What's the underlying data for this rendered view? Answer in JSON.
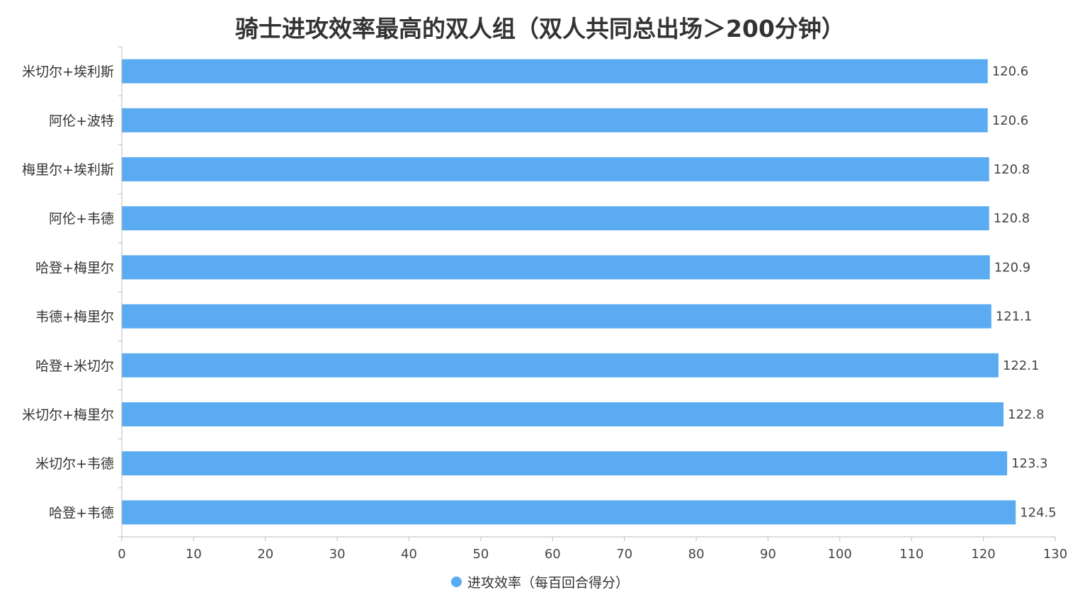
{
  "chart_data": {
    "type": "bar",
    "orientation": "horizontal",
    "title": "骑士进攻效率最高的双人组（双人共同总出场＞200分钟）",
    "categories": [
      "米切尔+埃利斯",
      "阿伦+波特",
      "梅里尔+埃利斯",
      "阿伦+韦德",
      "哈登+梅里尔",
      "韦德+梅里尔",
      "哈登+米切尔",
      "米切尔+梅里尔",
      "米切尔+韦德",
      "哈登+韦德"
    ],
    "series": [
      {
        "name": "进攻效率（每百回合得分）",
        "values": [
          120.6,
          120.6,
          120.8,
          120.8,
          120.9,
          121.1,
          122.1,
          122.8,
          123.3,
          124.5
        ],
        "value_labels": [
          "120.6",
          "120.6",
          "120.8",
          "120.8",
          "120.9",
          "121.1",
          "122.1",
          "122.8",
          "123.3",
          "124.5"
        ],
        "color": "#5aabf2"
      }
    ],
    "xlim": [
      0,
      130
    ],
    "xticks": [
      0,
      10,
      20,
      30,
      40,
      50,
      60,
      70,
      80,
      90,
      100,
      110,
      120,
      130
    ],
    "xlabel": "",
    "ylabel": "",
    "grid": false,
    "legend_position": "bottom-center"
  }
}
